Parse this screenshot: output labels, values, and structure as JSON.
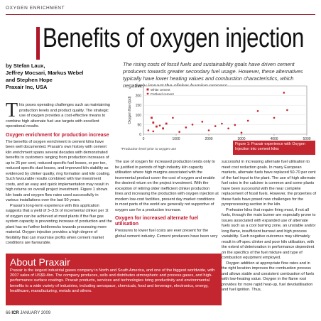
{
  "section": "OXYGEN ENRICHMENT",
  "title": "Benefits of oxygen injection",
  "authors": [
    "by Stefan Laux,",
    "Jeffrey Mocsari, Markus Webel",
    "and Stephen Hope",
    "Praxair Inc, USA"
  ],
  "standfirst": "The rising costs of fossil fuels and sustainability goals have driven cement producers towards greater secondary fuel usage. However, these alternatives typically have lower heating values and combustion characteristics, which negatively impact the clinker burning process.",
  "col1": {
    "dropcap": "T",
    "intro": "his poses operating challenges such as maintaining production levels and product quality. The strategic use of oxygen provides a cost-effective means to combine high alternate fuel use targets with excellent operational results.",
    "subhead": "Oxygen enrichment for production increase",
    "p1": "The benefits of oxygen enrichment in cement kilns have been well documented. Praxair's own history with cement kiln enrichment spans several decades with demonstrated benefits to customers ranging from production increases of up to 25 per cent, reduced specific fuel losses, or per ton, reduced specific dust losses, and improved kiln stability as evidenced by clinker quality, ring formation and kiln coating. Such favourable results combined with low investment costs, and an easy and quick implementation may result in high returns on overall project investment. Figure 1 shows kiln loads and oxygen flow rates used successfully in various installations over the last 50 years.",
    "p2": "Praxair's long-term experience with this application suggests that a yield of 3–3.5t of incremental clinker per 1t of oxygen can be achieved at most plants if the flue gas system capacity is preventing increase of production and the plant has no further bottlenecks towards processing more material. Oxygen injection provides a high degree of flexibility that can maximise profits when cement market conditions are favourable."
  },
  "col2": {
    "p1": "The use of oxygen for increased production tends only to be justified in periods of high industry kiln capacity utilisation where high margins associated with the incremental product cover the cost of oxygen and enable the desired return on the project investment. With the exception of retiring older inefficient clinker production lines and increasing the production with oxygen injection at modern low-cost facilities, present day market conditions in most parts of the world are generally not supportive of oxygen use for a production increase.",
    "subhead": "Oxygen for increased alternate fuel utilisation",
    "p2": "Pressures to lower fuel costs are ever present for the global cement industry. Cement producers have been very"
  },
  "col3": {
    "p1": "successful in increasing alternate fuel utilisation to meet cost reduction goals. In many European markets, alternate fuels have replaced 50-70 per cent of the fuel input to the plant. The use of high alternate fuel rates in the calciner is common and some plants have been successful with the near complete replacement of fossil fuels. However, the properties of these fuels have posed new challenges for the pyroprocessing section in the kiln.",
    "p2": "Preheater kilns that require firing most, if not all fuels, through the main burner are especially prone to issues associated with expanded use of alternate fuels such as a cool burning zone, an unstable and/or long flame, insufficient burnout and high process variability. Such negative outcomes may ultimately result in off-spec clinker and poor kiln utilisation, with the extent of deterioration in performance dependent on the specifics of the fuel mixture and type of combustion equipment employed.",
    "p3": "Oxygen addition at appropriate flow rates and in the right location improves the combustion process and allows stable and consistent combustion of fuels with low-heating value. Oxygen in the flame root provides for more rapid heat-up, fuel devolatilisation and fuel ignition. Thus,"
  },
  "about": {
    "heading": "About Praxair",
    "text": "Praxair is the largest industrial gases company in North and South America, and one of the biggest worldwide, with 2007 sales of US$9.4bn. The company produces, sells and distributes atmospheric and process gases, and high-performance surface coatings. Praxair products, services and technologies bring productivity and environmental benefits to a wide variety of industries, including aerospace, chemicals, food and beverage, electronics, energy, healthcare, manufacturing, metals and others."
  },
  "footer": {
    "page": "66",
    "mag": "ICR",
    "date": "JANUARY 2009"
  },
  "chart_note": "*Production level prior to oxygen use",
  "caption": "Figure 1: Praxair experience with Oxygen Injection into cement kilns",
  "colors": {
    "accent": "#c4262f",
    "rule": "#9a1c2a"
  },
  "chart_data": {
    "type": "scatter",
    "xlabel": "Kiln capacity tpd*",
    "ylabel": "Oxygen flow (tpd)",
    "xlim": [
      0,
      5000
    ],
    "ylim": [
      0,
      250
    ],
    "xticks": [
      "0",
      "1000",
      "2000",
      "3000",
      "4000",
      "5000"
    ],
    "yticks": [
      "0",
      "50",
      "100",
      "150",
      "200",
      "250"
    ],
    "legend_position": "top-left",
    "series": [
      {
        "name": "White cement",
        "color": "#c4262f",
        "marker": "square",
        "points": [
          [
            250,
            85
          ],
          [
            300,
            60
          ],
          [
            400,
            40
          ],
          [
            600,
            30
          ],
          [
            700,
            55
          ]
        ]
      },
      {
        "name": "Portland cement",
        "color": "#c4262f",
        "marker": "dot",
        "points": [
          [
            150,
            20
          ],
          [
            300,
            15
          ],
          [
            500,
            45
          ],
          [
            900,
            85
          ],
          [
            1100,
            12
          ],
          [
            1300,
            35
          ],
          [
            1500,
            50
          ],
          [
            1800,
            65
          ],
          [
            2000,
            20
          ],
          [
            2200,
            42
          ],
          [
            2400,
            55
          ],
          [
            2600,
            30
          ],
          [
            2800,
            48
          ],
          [
            3000,
            8
          ],
          [
            3200,
            70
          ],
          [
            3500,
            120
          ],
          [
            4000,
            85
          ],
          [
            4300,
            215
          ],
          [
            4400,
            125
          ]
        ]
      }
    ]
  }
}
